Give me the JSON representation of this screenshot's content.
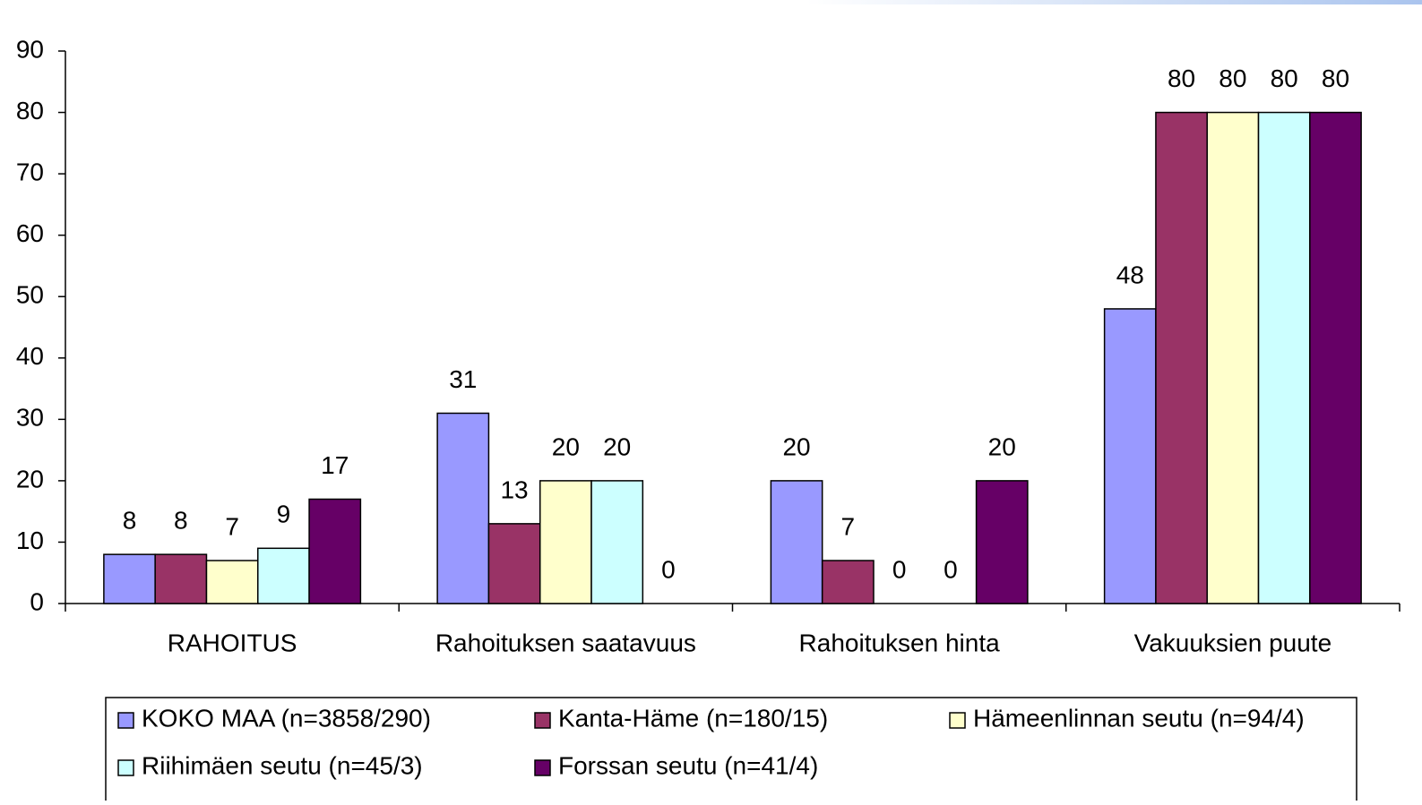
{
  "chart_data": {
    "type": "bar",
    "categories": [
      "RAHOITUS",
      "Rahoituksen saatavuus",
      "Rahoituksen hinta",
      "Vakuuksien puute"
    ],
    "series": [
      {
        "name": "KOKO MAA (n=3858/290)",
        "color": "#9999ff",
        "values": [
          8,
          31,
          20,
          48
        ]
      },
      {
        "name": "Kanta-Häme (n=180/15)",
        "color": "#993366",
        "values": [
          8,
          13,
          7,
          80
        ]
      },
      {
        "name": "Hämeenlinnan seutu (n=94/4)",
        "color": "#ffffcc",
        "values": [
          7,
          20,
          0,
          80
        ]
      },
      {
        "name": "Riihimäen seutu (n=45/3)",
        "color": "#ccffff",
        "values": [
          9,
          20,
          0,
          80
        ]
      },
      {
        "name": "Forssan seutu (n=41/4)",
        "color": "#660066",
        "values": [
          17,
          0,
          20,
          80
        ]
      }
    ],
    "ylim": [
      0,
      90
    ],
    "yticks": [
      0,
      10,
      20,
      30,
      40,
      50,
      60,
      70,
      80,
      90
    ],
    "grid": false
  }
}
